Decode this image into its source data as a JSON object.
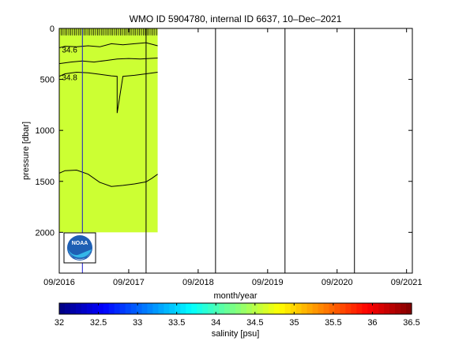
{
  "chart_data": {
    "type": "heatmap",
    "title": "WMO ID 5904780, internal ID 6637, 10–Dec–2021",
    "xlabel": "month/year",
    "ylabel": "pressure [dbar]",
    "x_tick_labels": [
      "09/2016",
      "09/2017",
      "09/2018",
      "09/2019",
      "09/2020",
      "09/2021"
    ],
    "x_range": [
      "09/2016",
      "10/2021"
    ],
    "y_ticks": [
      0,
      500,
      1000,
      1500,
      2000
    ],
    "y_range": [
      0,
      2400
    ],
    "y_reversed": true,
    "data_extent": {
      "x": [
        "09/2016",
        "02/2018"
      ],
      "pressure": [
        0,
        2000
      ]
    },
    "field_fill_color": "#ccff33",
    "contours": [
      {
        "label": "34.6",
        "points": [
          [
            "09/2016",
            190
          ],
          [
            "10/2016",
            175
          ],
          [
            "12/2016",
            180
          ],
          [
            "02/2017",
            170
          ],
          [
            "04/2017",
            180
          ],
          [
            "06/2017",
            150
          ],
          [
            "08/2017",
            160
          ],
          [
            "10/2017",
            150
          ],
          [
            "12/2017",
            140
          ],
          [
            "02/2018",
            170
          ]
        ]
      },
      {
        "label": "",
        "points": [
          [
            "09/2016",
            345
          ],
          [
            "11/2016",
            330
          ],
          [
            "01/2017",
            320
          ],
          [
            "03/2017",
            330
          ],
          [
            "05/2017",
            315
          ],
          [
            "07/2017",
            300
          ],
          [
            "09/2017",
            295
          ],
          [
            "11/2017",
            300
          ],
          [
            "02/2018",
            290
          ]
        ]
      },
      {
        "label": "34.8",
        "points": [
          [
            "09/2016",
            470
          ],
          [
            "10/2016",
            445
          ],
          [
            "12/2016",
            430
          ],
          [
            "02/2017",
            435
          ],
          [
            "04/2017",
            450
          ],
          [
            "06/2017",
            465
          ],
          [
            "07/2017",
            470
          ],
          [
            "07/2017",
            830
          ],
          [
            "08/2017",
            470
          ],
          [
            "10/2017",
            460
          ],
          [
            "12/2017",
            445
          ],
          [
            "02/2018",
            430
          ]
        ]
      },
      {
        "label": "",
        "points": [
          [
            "09/2016",
            1420
          ],
          [
            "10/2016",
            1395
          ],
          [
            "12/2016",
            1390
          ],
          [
            "02/2017",
            1430
          ],
          [
            "04/2017",
            1510
          ],
          [
            "06/2017",
            1550
          ],
          [
            "08/2017",
            1540
          ],
          [
            "10/2017",
            1525
          ],
          [
            "12/2017",
            1505
          ],
          [
            "01/2018",
            1470
          ],
          [
            "02/2018",
            1430
          ]
        ]
      }
    ],
    "vertical_markers": [
      "01/2017",
      "12/2017",
      "12/2018",
      "12/2019",
      "12/2020"
    ],
    "colorbar": {
      "label": "salinity [psu]",
      "range": [
        32,
        36.5
      ],
      "ticks": [
        32,
        32.5,
        33,
        33.5,
        34,
        34.5,
        35,
        35.5,
        36,
        36.5
      ],
      "colormap": "jet"
    },
    "logo": "noaa-logo"
  }
}
